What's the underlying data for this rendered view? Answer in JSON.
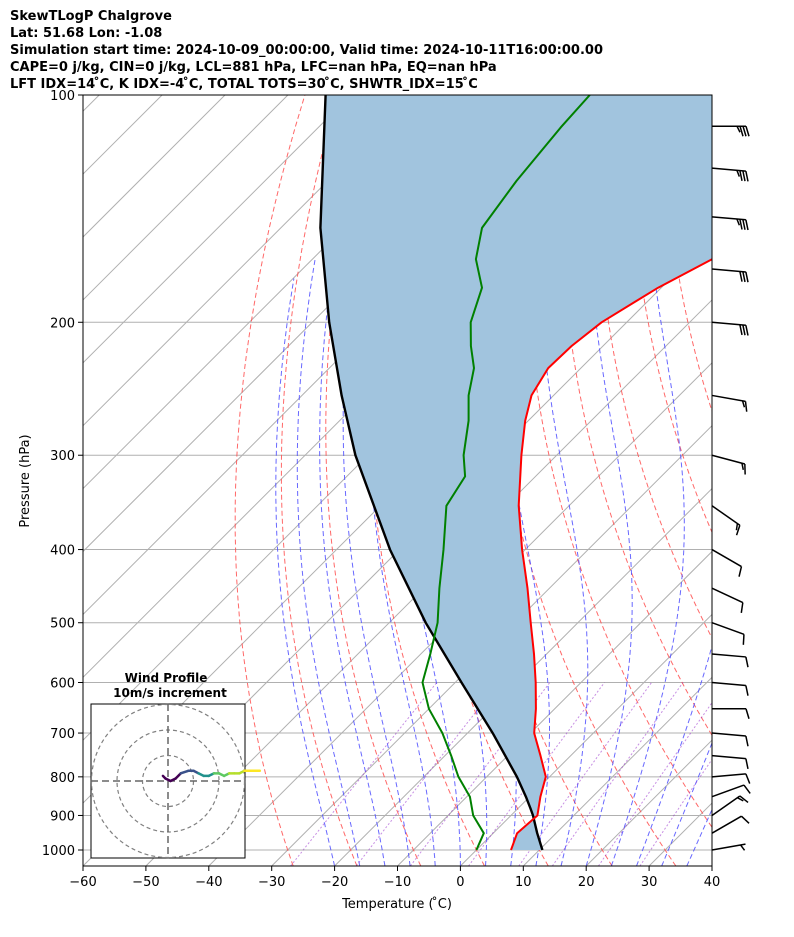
{
  "header": {
    "line1": "SkewTLogP Chalgrove",
    "line2": "Lat: 51.68   Lon: -1.08",
    "line3": "Simulation start time: 2024-10-09_00:00:00, Valid time: 2024-10-11T16:00:00.00",
    "line4": "CAPE=0 j/kg, CIN=0 j/kg, LCL=881 hPa, LFC=nan hPa, EQ=nan hPa",
    "line5": "LFT IDX=14 ̊C, K IDX=-4 ̊C, TOTAL TOTS=30 ̊C, SHWTR_IDX=15 ̊C"
  },
  "chart_data": {
    "type": "line",
    "xlabel": "Temperature ( ̊C)",
    "ylabel": "Pressure (hPa)",
    "xlim": [
      -60,
      40
    ],
    "ylim": [
      1050,
      100
    ],
    "y_scale": "log",
    "skew": true,
    "grid": true,
    "x_ticks": [
      -60,
      -50,
      -40,
      -30,
      -20,
      -10,
      0,
      10,
      20,
      30,
      40
    ],
    "x_tick_labels": [
      "−60",
      "−50",
      "−40",
      "−30",
      "−20",
      "−10",
      "0",
      "10",
      "20",
      "30",
      "40"
    ],
    "y_ticks": [
      1000,
      900,
      800,
      700,
      600,
      500,
      400,
      300,
      200,
      100
    ],
    "y_tick_labels": [
      "1000",
      "900",
      "800",
      "700",
      "600",
      "500",
      "400",
      "300",
      "200",
      "100"
    ],
    "series": [
      {
        "role": "temperature",
        "color": "#ff0000",
        "p": [
          1000,
          950,
          900,
          850,
          800,
          750,
          700,
          650,
          600,
          550,
          500,
          450,
          400,
          350,
          300,
          270,
          250,
          230,
          215,
          200,
          180,
          160,
          140,
          120,
          110,
          100
        ],
        "t": [
          5.5,
          3.8,
          4.2,
          1.7,
          -0.6,
          -4.8,
          -9.4,
          -13.0,
          -17.2,
          -22.0,
          -27.5,
          -33.5,
          -40.5,
          -48.0,
          -55.6,
          -60.5,
          -63.5,
          -65.2,
          -65.0,
          -64.0,
          -60.5,
          -55.0,
          -50.5,
          -45.0,
          -41.0,
          -37.8
        ]
      },
      {
        "role": "dewpoint",
        "color": "#008000",
        "p": [
          1000,
          950,
          900,
          850,
          800,
          750,
          700,
          650,
          600,
          550,
          500,
          450,
          400,
          350,
          320,
          300,
          270,
          250,
          230,
          215,
          200,
          180,
          165,
          150,
          130,
          110,
          100
        ],
        "t": [
          0.0,
          -1.5,
          -6.0,
          -9.5,
          -14.5,
          -19.0,
          -24.0,
          -30.0,
          -35.2,
          -38.5,
          -42.3,
          -47.5,
          -53.0,
          -59.5,
          -61.2,
          -64.8,
          -69.5,
          -73.5,
          -77.0,
          -81.0,
          -84.8,
          -88.5,
          -94.0,
          -98.0,
          -100.0,
          -101.5,
          -102.0
        ]
      },
      {
        "role": "parcel",
        "color": "#000000",
        "p": [
          1000,
          950,
          900,
          881,
          850,
          800,
          700,
          600,
          500,
          400,
          300,
          250,
          200,
          150,
          100
        ],
        "t": [
          10.5,
          7.0,
          3.5,
          2.0,
          -0.6,
          -5.2,
          -16.0,
          -29.0,
          -44.2,
          -61.5,
          -82.0,
          -93.7,
          -107.3,
          -123.7,
          -144.0
        ]
      }
    ],
    "cape_shading": {
      "color": "#a1c4de",
      "between": [
        "parcel",
        "temperature"
      ]
    },
    "reference_lines": {
      "isotherm_step": 10,
      "dry_adiabats": "red dashed",
      "moist_adiabats": "blue dashed",
      "mixing_ratio": "purple dashed"
    },
    "wind_barbs": {
      "p": [
        1000,
        950,
        900,
        850,
        800,
        750,
        700,
        650,
        600,
        550,
        500,
        450,
        400,
        350,
        300,
        250,
        200,
        170,
        145,
        125,
        110
      ],
      "direction_deg": [
        260,
        240,
        235,
        250,
        265,
        275,
        275,
        270,
        275,
        275,
        290,
        295,
        300,
        305,
        285,
        280,
        275,
        275,
        275,
        275,
        270
      ],
      "speed_kt": [
        5,
        10,
        15,
        10,
        10,
        10,
        10,
        10,
        10,
        10,
        10,
        10,
        10,
        15,
        15,
        15,
        30,
        30,
        35,
        35,
        35
      ]
    },
    "inset": {
      "title": "Wind Profile",
      "subtitle": "10m/s increment",
      "rings_ms": [
        10,
        20,
        30
      ],
      "hodograph": {
        "u": [
          -2,
          -1,
          1,
          3,
          5,
          8,
          10,
          12,
          14,
          16,
          18,
          20,
          22,
          24,
          26,
          28,
          30,
          32,
          34,
          36
        ],
        "v": [
          2,
          1,
          0,
          1,
          3,
          4,
          4,
          3,
          2,
          2,
          3,
          3,
          2,
          3,
          3,
          3,
          4,
          4,
          4,
          4
        ]
      }
    }
  }
}
